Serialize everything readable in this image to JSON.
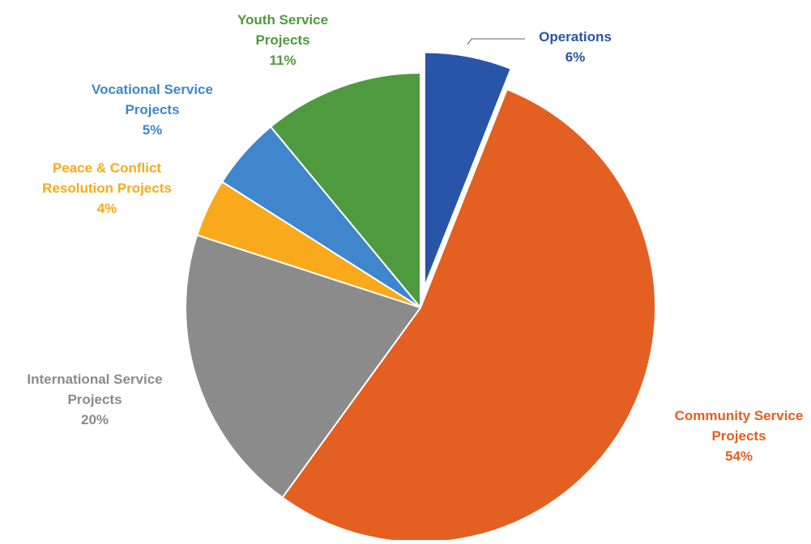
{
  "chart_data": {
    "type": "pie",
    "title": "",
    "start_angle_deg": 0,
    "direction": "clockwise",
    "slices": [
      {
        "name": "Operations",
        "label_lines": [
          "Operations"
        ],
        "value": 6,
        "percent_label": "6%",
        "color": "#2955A8",
        "exploded": true,
        "show_leader_line": true
      },
      {
        "name": "Community Service Projects",
        "label_lines": [
          "Community Service",
          "Projects"
        ],
        "value": 54,
        "percent_label": "54%",
        "color": "#E35F22",
        "exploded": false,
        "show_leader_line": false
      },
      {
        "name": "International Service Projects",
        "label_lines": [
          "International Service",
          "Projects"
        ],
        "value": 20,
        "percent_label": "20%",
        "color": "#8B8B8B",
        "exploded": false,
        "show_leader_line": false
      },
      {
        "name": "Peace & Conflict Resolution Projects",
        "label_lines": [
          "Peace & Conflict",
          "Resolution Projects"
        ],
        "value": 4,
        "percent_label": "4%",
        "color": "#F9AA1C",
        "exploded": false,
        "show_leader_line": false
      },
      {
        "name": "Vocational Service Projects",
        "label_lines": [
          "Vocational Service",
          "Projects"
        ],
        "value": 5,
        "percent_label": "5%",
        "color": "#3F86CC",
        "exploded": false,
        "show_leader_line": false
      },
      {
        "name": "Youth Service Projects",
        "label_lines": [
          "Youth Service",
          "Projects"
        ],
        "value": 11,
        "percent_label": "11%",
        "color": "#4F9A3F",
        "exploded": false,
        "show_leader_line": false
      }
    ]
  }
}
